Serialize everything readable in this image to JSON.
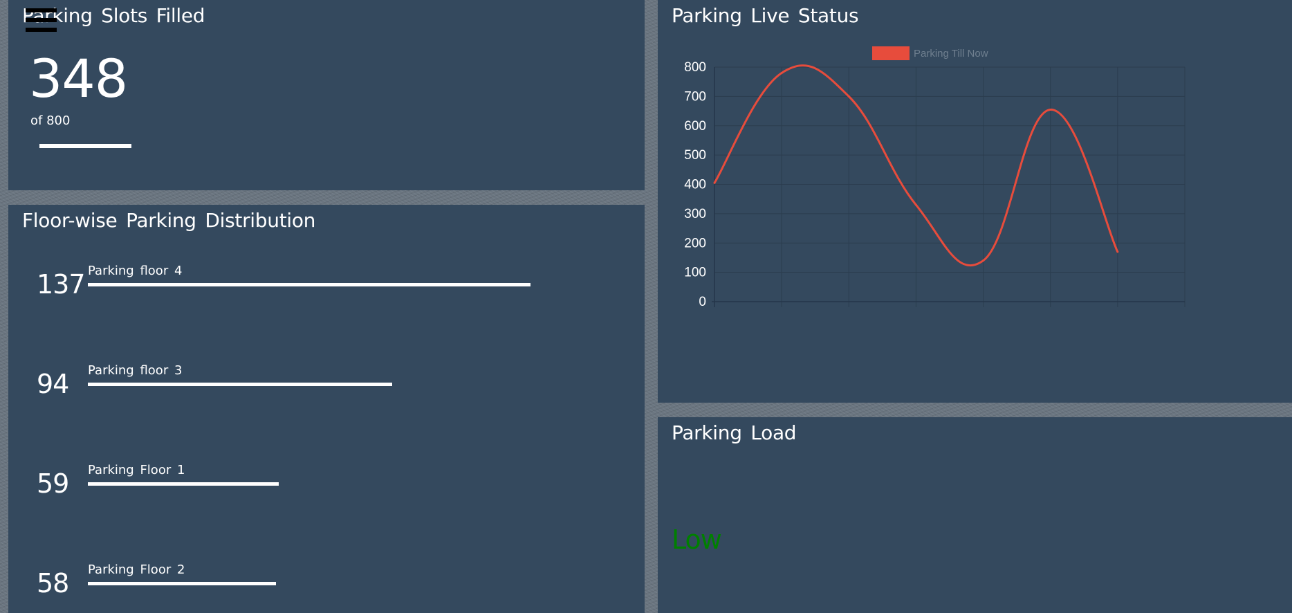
{
  "slots": {
    "title": "Parking Slots Filled",
    "filled": "348",
    "total_label": "of 800",
    "fill_fraction": 0.435
  },
  "floors": {
    "title": "Floor-wise Parking Distribution",
    "items": [
      {
        "count": "137",
        "label": "Parking floor 4",
        "fill": 0.8
      },
      {
        "count": "94",
        "label": "Parking floor 3",
        "fill": 0.55
      },
      {
        "count": "59",
        "label": "Parking  Floor 1",
        "fill": 0.345
      },
      {
        "count": "58",
        "label": "Parking  Floor 2",
        "fill": 0.34
      }
    ]
  },
  "live": {
    "title": "Parking  Live Status"
  },
  "load": {
    "title": "Parking  Load",
    "value": "Low",
    "value_color": "#008000"
  },
  "icons": {
    "menu": "hamburger-menu-icon"
  },
  "colors": {
    "panel": "#34495e",
    "series": "#e74c3c"
  },
  "chart_data": {
    "type": "line",
    "series": [
      {
        "name": "Parking Till Now",
        "values": [
          405,
          780,
          700,
          330,
          140,
          655,
          170
        ]
      }
    ],
    "x": [
      "",
      "",
      "",
      "",
      "",
      "",
      ""
    ],
    "ylim": [
      0,
      800
    ],
    "yticks": [
      "0",
      "100",
      "200",
      "300",
      "400",
      "500",
      "600",
      "700",
      "800"
    ],
    "grid": true,
    "legend": "top-center"
  }
}
